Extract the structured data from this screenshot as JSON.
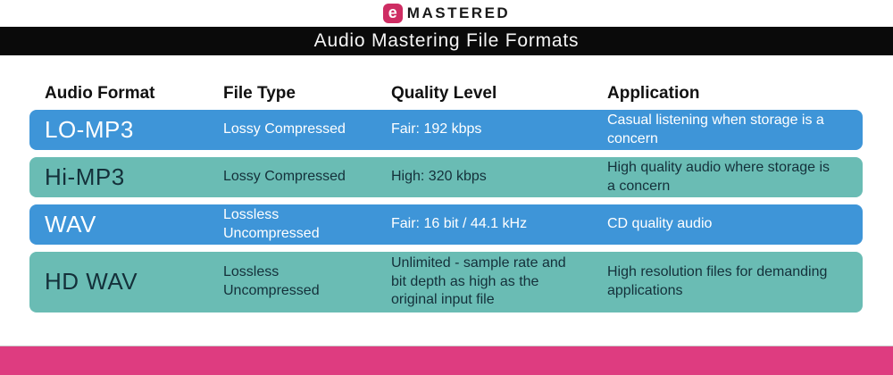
{
  "brand": {
    "logo_icon_letter": "e",
    "logo_text": "MASTERED",
    "logo_color": "#ce2d63"
  },
  "title_bar": {
    "title": "Audio Mastering File Formats"
  },
  "chart_data": {
    "type": "table",
    "title": "Audio Mastering File Formats",
    "columns": [
      "Audio Format",
      "File Type",
      "Quality Level",
      "Application"
    ],
    "rows": [
      {
        "format": "LO-MP3",
        "file_type": "Lossy Compressed",
        "quality": "Fair: 192 kbps",
        "application": "Casual listening when storage is a concern",
        "row_color": "#3e95d8"
      },
      {
        "format": "Hi-MP3",
        "file_type": "Lossy Compressed",
        "quality": "High: 320 kbps",
        "application": "High quality audio where storage is a concern",
        "row_color": "#6abcb4"
      },
      {
        "format": "WAV",
        "file_type": "Lossless Uncompressed",
        "quality": "Fair: 16 bit / 44.1 kHz",
        "application": "CD quality audio",
        "row_color": "#3e95d8"
      },
      {
        "format": "HD WAV",
        "file_type": "Lossless Uncompressed",
        "quality": "Unlimited - sample rate and bit depth as high as the original input file",
        "application": "High resolution files for demanding applications",
        "row_color": "#6abcb4"
      }
    ]
  },
  "colors": {
    "blue_row": "#3e95d8",
    "teal_row": "#6abcb4",
    "footer_bar": "#de3c80",
    "title_bar_bg": "#0a0a0a",
    "row_text_light": "#ffffff",
    "row_text_dark": "#14303a"
  }
}
